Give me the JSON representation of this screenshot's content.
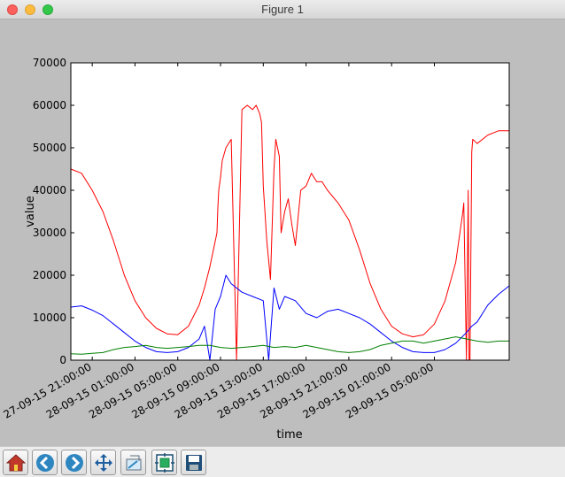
{
  "window": {
    "title": "Figure 1"
  },
  "toolbar": {
    "buttons": [
      {
        "name": "home-button",
        "icon": "home-icon"
      },
      {
        "name": "back-button",
        "icon": "arrow-left-icon"
      },
      {
        "name": "forward-button",
        "icon": "arrow-right-icon"
      },
      {
        "name": "pan-button",
        "icon": "move-icon"
      },
      {
        "name": "zoom-button",
        "icon": "zoom-rect-icon"
      },
      {
        "name": "subplots-button",
        "icon": "subplots-icon"
      },
      {
        "name": "save-button",
        "icon": "floppy-disk-icon"
      }
    ]
  },
  "chart_data": {
    "type": "line",
    "title": "",
    "xlabel": "time",
    "ylabel": "value",
    "ylim": [
      0,
      70000
    ],
    "yticks": [
      0,
      10000,
      20000,
      30000,
      40000,
      50000,
      60000,
      70000
    ],
    "xlim": [
      "27-09-15 19:00:00",
      "29-09-15 12:00:00"
    ],
    "xticks": [
      "27-09-15 21:00:00",
      "28-09-15 01:00:00",
      "28-09-15 05:00:00",
      "28-09-15 09:00:00",
      "28-09-15 13:00:00",
      "28-09-15 17:00:00",
      "28-09-15 21:00:00",
      "29-09-15 01:00:00",
      "29-09-15 05:00:00"
    ],
    "grid": false,
    "series": [
      {
        "color": "#ff0000",
        "x": [
          "27-09-15 19:00",
          "27-09-15 20:00",
          "27-09-15 21:00",
          "27-09-15 22:00",
          "27-09-15 23:00",
          "28-09-15 00:00",
          "28-09-15 01:00",
          "28-09-15 02:00",
          "28-09-15 03:00",
          "28-09-15 04:00",
          "28-09-15 05:00",
          "28-09-15 06:00",
          "28-09-15 07:00",
          "28-09-15 07:30",
          "28-09-15 08:00",
          "28-09-15 08:40",
          "28-09-15 08:45",
          "28-09-15 08:50",
          "28-09-15 09:00",
          "28-09-15 09:10",
          "28-09-15 09:30",
          "28-09-15 10:00",
          "28-09-15 10:30",
          "28-09-15 11:00",
          "28-09-15 11:30",
          "28-09-15 12:00",
          "28-09-15 12:20",
          "28-09-15 12:40",
          "28-09-15 12:50",
          "28-09-15 13:00",
          "28-09-15 13:20",
          "28-09-15 13:40",
          "28-09-15 14:00",
          "28-09-15 14:10",
          "28-09-15 14:30",
          "28-09-15 14:40",
          "28-09-15 15:00",
          "28-09-15 15:20",
          "28-09-15 15:40",
          "28-09-15 16:00",
          "28-09-15 16:30",
          "28-09-15 17:00",
          "28-09-15 17:30",
          "28-09-15 18:00",
          "28-09-15 18:30",
          "28-09-15 19:00",
          "28-09-15 20:00",
          "28-09-15 21:00",
          "28-09-15 22:00",
          "28-09-15 23:00",
          "29-09-15 00:00",
          "29-09-15 01:00",
          "29-09-15 02:00",
          "29-09-15 03:00",
          "29-09-15 04:00",
          "29-09-15 05:00",
          "29-09-15 06:00",
          "29-09-15 07:00",
          "29-09-15 07:30",
          "29-09-15 07:40",
          "29-09-15 07:45",
          "29-09-15 08:00",
          "29-09-15 08:10",
          "29-09-15 08:15",
          "29-09-15 08:20",
          "29-09-15 08:30",
          "29-09-15 08:35",
          "29-09-15 09:00",
          "29-09-15 10:00",
          "29-09-15 11:00",
          "29-09-15 12:00"
        ],
        "values": [
          45000,
          44000,
          40000,
          35000,
          28000,
          20000,
          14000,
          10000,
          7500,
          6200,
          6000,
          8000,
          13000,
          17000,
          22000,
          30000,
          36000,
          40000,
          43000,
          47000,
          50000,
          52000,
          0,
          59000,
          60000,
          59000,
          60000,
          58000,
          56000,
          41000,
          28000,
          19000,
          45000,
          52000,
          48000,
          30000,
          35000,
          38000,
          32000,
          27000,
          40000,
          41000,
          44000,
          42000,
          42000,
          40000,
          37000,
          33000,
          26000,
          18000,
          12000,
          8000,
          6200,
          5500,
          6000,
          8500,
          14000,
          23000,
          32000,
          35000,
          37000,
          0,
          40000,
          0,
          0,
          49000,
          52000,
          51000,
          53000,
          54000,
          54000
        ]
      },
      {
        "color": "#0000ff",
        "x": [
          "27-09-15 19:00",
          "27-09-15 20:00",
          "27-09-15 21:00",
          "27-09-15 22:00",
          "27-09-15 23:00",
          "28-09-15 00:00",
          "28-09-15 01:00",
          "28-09-15 02:00",
          "28-09-15 03:00",
          "28-09-15 04:00",
          "28-09-15 05:00",
          "28-09-15 06:00",
          "28-09-15 07:00",
          "28-09-15 07:30",
          "28-09-15 08:00",
          "28-09-15 08:30",
          "28-09-15 09:00",
          "28-09-15 09:30",
          "28-09-15 10:00",
          "28-09-15 11:00",
          "28-09-15 12:00",
          "28-09-15 13:00",
          "28-09-15 13:30",
          "28-09-15 14:00",
          "28-09-15 14:30",
          "28-09-15 15:00",
          "28-09-15 16:00",
          "28-09-15 17:00",
          "28-09-15 18:00",
          "28-09-15 19:00",
          "28-09-15 20:00",
          "28-09-15 21:00",
          "28-09-15 22:00",
          "28-09-15 23:00",
          "29-09-15 00:00",
          "29-09-15 01:00",
          "29-09-15 02:00",
          "29-09-15 03:00",
          "29-09-15 04:00",
          "29-09-15 05:00",
          "29-09-15 06:00",
          "29-09-15 07:00",
          "29-09-15 08:00",
          "29-09-15 08:30",
          "29-09-15 09:00",
          "29-09-15 10:00",
          "29-09-15 11:00",
          "29-09-15 12:00"
        ],
        "values": [
          12500,
          12800,
          11800,
          10500,
          8500,
          6500,
          4500,
          3000,
          2000,
          1800,
          2000,
          3000,
          5000,
          8000,
          0,
          12000,
          15000,
          20000,
          18000,
          16000,
          15000,
          14000,
          0,
          17000,
          12000,
          15000,
          14000,
          11000,
          10000,
          11500,
          12000,
          11000,
          10000,
          8500,
          6500,
          4500,
          3000,
          2000,
          1800,
          1800,
          2500,
          4000,
          6500,
          8000,
          9000,
          13000,
          15500,
          17500
        ]
      },
      {
        "color": "#007f00",
        "x": [
          "27-09-15 19:00",
          "27-09-15 20:00",
          "27-09-15 21:00",
          "27-09-15 22:00",
          "27-09-15 23:00",
          "28-09-15 00:00",
          "28-09-15 01:00",
          "28-09-15 02:00",
          "28-09-15 03:00",
          "28-09-15 04:00",
          "28-09-15 05:00",
          "28-09-15 06:00",
          "28-09-15 07:00",
          "28-09-15 08:00",
          "28-09-15 09:00",
          "28-09-15 10:00",
          "28-09-15 11:00",
          "28-09-15 12:00",
          "28-09-15 13:00",
          "28-09-15 14:00",
          "28-09-15 15:00",
          "28-09-15 16:00",
          "28-09-15 17:00",
          "28-09-15 18:00",
          "28-09-15 19:00",
          "28-09-15 20:00",
          "28-09-15 21:00",
          "28-09-15 22:00",
          "28-09-15 23:00",
          "29-09-15 00:00",
          "29-09-15 01:00",
          "29-09-15 02:00",
          "29-09-15 03:00",
          "29-09-15 04:00",
          "29-09-15 05:00",
          "29-09-15 06:00",
          "29-09-15 07:00",
          "29-09-15 08:00",
          "29-09-15 09:00",
          "29-09-15 10:00",
          "29-09-15 11:00",
          "29-09-15 12:00"
        ],
        "values": [
          1500,
          1400,
          1600,
          1800,
          2500,
          3000,
          3200,
          3500,
          3000,
          2800,
          3000,
          3200,
          3500,
          3500,
          3000,
          2800,
          3000,
          3200,
          3500,
          3000,
          3200,
          3000,
          3500,
          3000,
          2500,
          2000,
          1800,
          2000,
          2500,
          3500,
          4000,
          4500,
          4500,
          4000,
          4500,
          5000,
          5500,
          5000,
          4500,
          4200,
          4500,
          4500
        ]
      }
    ]
  }
}
